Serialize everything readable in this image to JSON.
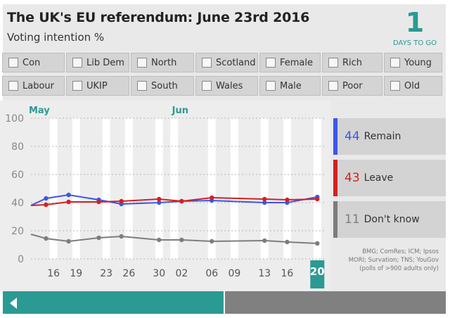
{
  "header": {
    "title": "The UK's EU referendum: June 23rd 2016",
    "subtitle": "Voting intention %",
    "days_number": "1",
    "days_label": "DAYS TO GO"
  },
  "filters": [
    "Con",
    "Lib Dem",
    "North",
    "Scotland",
    "Female",
    "Rich",
    "Young",
    "Labour",
    "UKIP",
    "South",
    "Wales",
    "Male",
    "Poor",
    "Old"
  ],
  "legend": [
    {
      "value": "44",
      "label": "Remain",
      "color": "#3a57e8"
    },
    {
      "value": "43",
      "label": "Leave",
      "color": "#d42020"
    },
    {
      "value": "11",
      "label": "Don't know",
      "color": "#7d7d7d"
    }
  ],
  "source": "BMG; ComRes; ICM; Ipsos MORI; Survation; TNS; YouGov (polls of >900 adults only)",
  "colors": {
    "accent": "#2a9a93",
    "remain": "#3a57e8",
    "leave": "#d42020",
    "dontknow": "#7d7d7d"
  },
  "chart_data": {
    "type": "line",
    "month_labels": [
      {
        "label": "May",
        "day": 13
      },
      {
        "label": "Jun",
        "day": 32
      }
    ],
    "ticks": [
      {
        "label": "16",
        "day": 16
      },
      {
        "label": "19",
        "day": 19
      },
      {
        "label": "23",
        "day": 23
      },
      {
        "label": "26",
        "day": 26
      },
      {
        "label": "30",
        "day": 30
      },
      {
        "label": "02",
        "day": 33
      },
      {
        "label": "06",
        "day": 37
      },
      {
        "label": "09",
        "day": 40
      },
      {
        "label": "13",
        "day": 44
      },
      {
        "label": "16",
        "day": 47
      },
      {
        "label": "20",
        "day": 51,
        "highlight": true
      }
    ],
    "ylim": [
      0,
      100
    ],
    "yticks": [
      0,
      20,
      40,
      60,
      80,
      100
    ],
    "xlim": [
      13,
      52
    ],
    "series": [
      {
        "name": "Remain",
        "color": "#3a57e8",
        "x": [
          13,
          15,
          18,
          22,
          25,
          30,
          33,
          37,
          44,
          47,
          51
        ],
        "y": [
          38,
          43,
          45.5,
          42,
          39,
          40,
          41,
          41.5,
          40,
          40,
          44
        ]
      },
      {
        "name": "Leave",
        "color": "#d42020",
        "x": [
          13,
          15,
          18,
          22,
          25,
          30,
          33,
          37,
          44,
          47,
          51
        ],
        "y": [
          38,
          38.5,
          40.5,
          40.5,
          41,
          42.5,
          41,
          43.5,
          42.5,
          42,
          42.5
        ]
      },
      {
        "name": "Don't know",
        "color": "#7d7d7d",
        "x": [
          13,
          15,
          18,
          22,
          25,
          30,
          33,
          37,
          44,
          47,
          51
        ],
        "y": [
          17.5,
          14.5,
          12.5,
          15,
          16,
          13.5,
          13.5,
          12.5,
          13,
          12,
          11
        ]
      }
    ]
  }
}
